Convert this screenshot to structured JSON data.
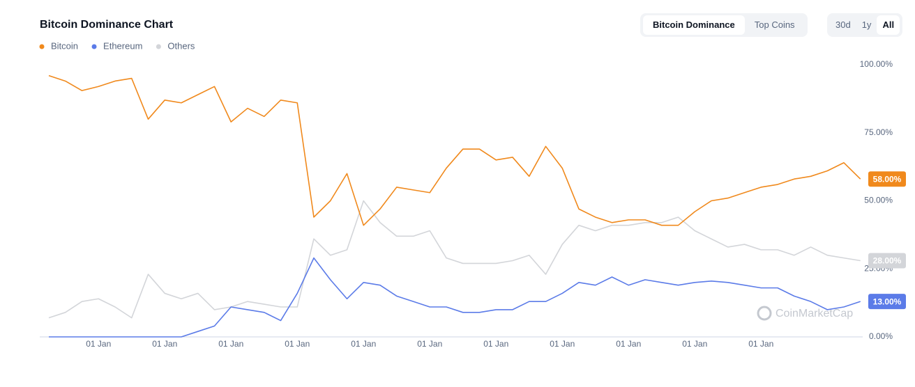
{
  "ui": {
    "tabs": [
      "Bitcoin Dominance",
      "Top Coins"
    ],
    "ranges": [
      "30d",
      "1y",
      "All"
    ],
    "watermark": "CoinMarketCap"
  },
  "chart_data": {
    "type": "line",
    "title": "Bitcoin Dominance Chart",
    "categories": [
      null,
      null,
      null,
      "01 Jan",
      null,
      null,
      null,
      "01 Jan",
      null,
      null,
      null,
      "01 Jan",
      null,
      null,
      null,
      "01 Jan",
      null,
      null,
      null,
      "01 Jan",
      null,
      null,
      null,
      "01 Jan",
      null,
      null,
      null,
      "01 Jan",
      null,
      null,
      null,
      "01 Jan",
      null,
      null,
      null,
      "01 Jan",
      null,
      null,
      null,
      "01 Jan",
      null,
      null,
      null,
      "01 Jan",
      null,
      null,
      null,
      null,
      null,
      null
    ],
    "ylim": [
      0,
      100
    ],
    "yticks": [
      {
        "value": 0,
        "label": "0.00%"
      },
      {
        "value": 25,
        "label": "25.00%"
      },
      {
        "value": 50,
        "label": "50.00%"
      },
      {
        "value": 75,
        "label": "75.00%"
      },
      {
        "value": 100,
        "label": "100.00%"
      }
    ],
    "grid": false,
    "legend": "top-left",
    "series": [
      {
        "name": "Bitcoin",
        "color": "#f0891c",
        "last_label": "58.00%",
        "values": [
          96,
          94,
          90.5,
          92,
          94,
          95,
          80,
          87,
          86,
          89,
          92,
          79,
          84,
          81,
          87,
          86,
          44,
          50,
          60,
          41,
          47,
          55,
          54,
          53,
          62,
          69,
          69,
          65,
          66,
          59,
          70,
          62,
          47,
          44,
          42,
          43,
          43,
          41,
          41,
          46,
          50,
          51,
          53,
          55,
          56,
          58,
          59,
          61,
          64,
          58
        ]
      },
      {
        "name": "Ethereum",
        "color": "#5b7be8",
        "last_label": "13.00%",
        "values": [
          0,
          0,
          0,
          0,
          0,
          0,
          0,
          0,
          0,
          2,
          4,
          11,
          10,
          9,
          6,
          16,
          29,
          21,
          14,
          20,
          19,
          15,
          13,
          11,
          11,
          9,
          9,
          10,
          10,
          13,
          13,
          16,
          20,
          19,
          22,
          19,
          21,
          20,
          19,
          20,
          20.5,
          20,
          19,
          18,
          18,
          15,
          13,
          10,
          11,
          13
        ]
      },
      {
        "name": "Others",
        "color": "#d3d5d9",
        "last_label": "28.00%",
        "values": [
          7,
          9,
          13,
          14,
          11,
          7,
          23,
          16,
          14,
          16,
          10,
          11,
          13,
          12,
          11,
          11,
          36,
          30,
          32,
          50,
          42,
          37,
          37,
          39,
          29,
          27,
          27,
          27,
          28,
          30,
          23,
          34,
          41,
          39,
          41,
          41,
          42,
          42,
          44,
          39,
          36,
          33,
          34,
          32,
          32,
          30,
          33,
          30,
          29,
          28
        ]
      }
    ]
  }
}
